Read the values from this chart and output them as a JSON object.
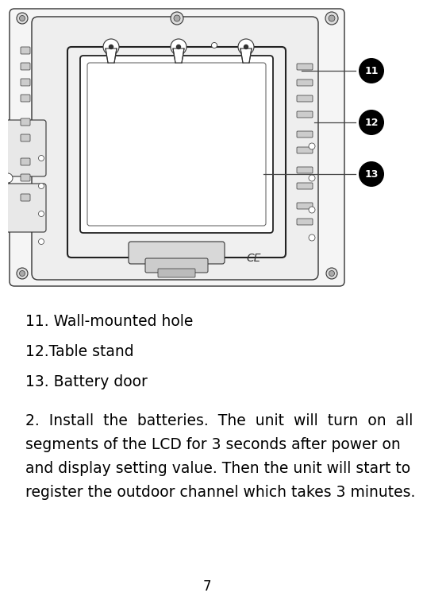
{
  "background_color": "#ffffff",
  "page_number": "7",
  "bullet_items": [
    "11. Wall-mounted hole",
    "12.Table stand",
    "13. Battery door"
  ],
  "paragraph_lines": [
    "2.  Install  the  batteries.  The  unit  will  turn  on  all",
    "segments of the LCD for 3 seconds after power on",
    "and display setting value. Then the unit will start to",
    "register the outdoor channel which takes 3 minutes."
  ],
  "text_color": "#000000",
  "bullet_fontsize": 13.5,
  "para_fontsize": 13.5,
  "page_num_fontsize": 12,
  "line_color": "#333333",
  "body_fill": "#f8f8f8",
  "inner_fill": "#f0f0f0",
  "slot_fill": "#cccccc",
  "bat_fill": "#e8e8e8"
}
